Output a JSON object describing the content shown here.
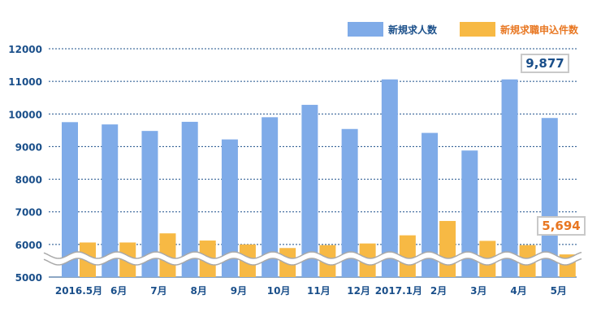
{
  "legend": {
    "series1": "新規求人数",
    "series2": "新規求職申込件数"
  },
  "colors": {
    "series1": "#7fabe8",
    "series2": "#f7b944",
    "axis_text": "#1a4f8a",
    "grid": "#1a4f8a",
    "callout2_text": "#e87722"
  },
  "callouts": {
    "series1_last": "9,877",
    "series2_last": "5,694"
  },
  "chart_data": {
    "type": "bar",
    "categories": [
      "2016.5月",
      "6月",
      "7月",
      "8月",
      "9月",
      "10月",
      "11月",
      "12月",
      "2017.1月",
      "2月",
      "3月",
      "4月",
      "5月"
    ],
    "series": [
      {
        "name": "新規求人数",
        "values": [
          9750,
          9680,
          9480,
          9760,
          9220,
          9900,
          10280,
          9540,
          11060,
          9420,
          8880,
          11060,
          9877
        ]
      },
      {
        "name": "新規求職申込件数",
        "values": [
          6060,
          6060,
          6340,
          6120,
          6000,
          5890,
          5980,
          6030,
          6280,
          6720,
          6110,
          5980,
          5694
        ]
      }
    ],
    "y_ticks": [
      5000,
      6000,
      7000,
      8000,
      9000,
      10000,
      11000,
      12000
    ],
    "ylim": [
      5000,
      12000
    ],
    "axis_break": true,
    "grid": true,
    "legend_position": "top-right"
  }
}
